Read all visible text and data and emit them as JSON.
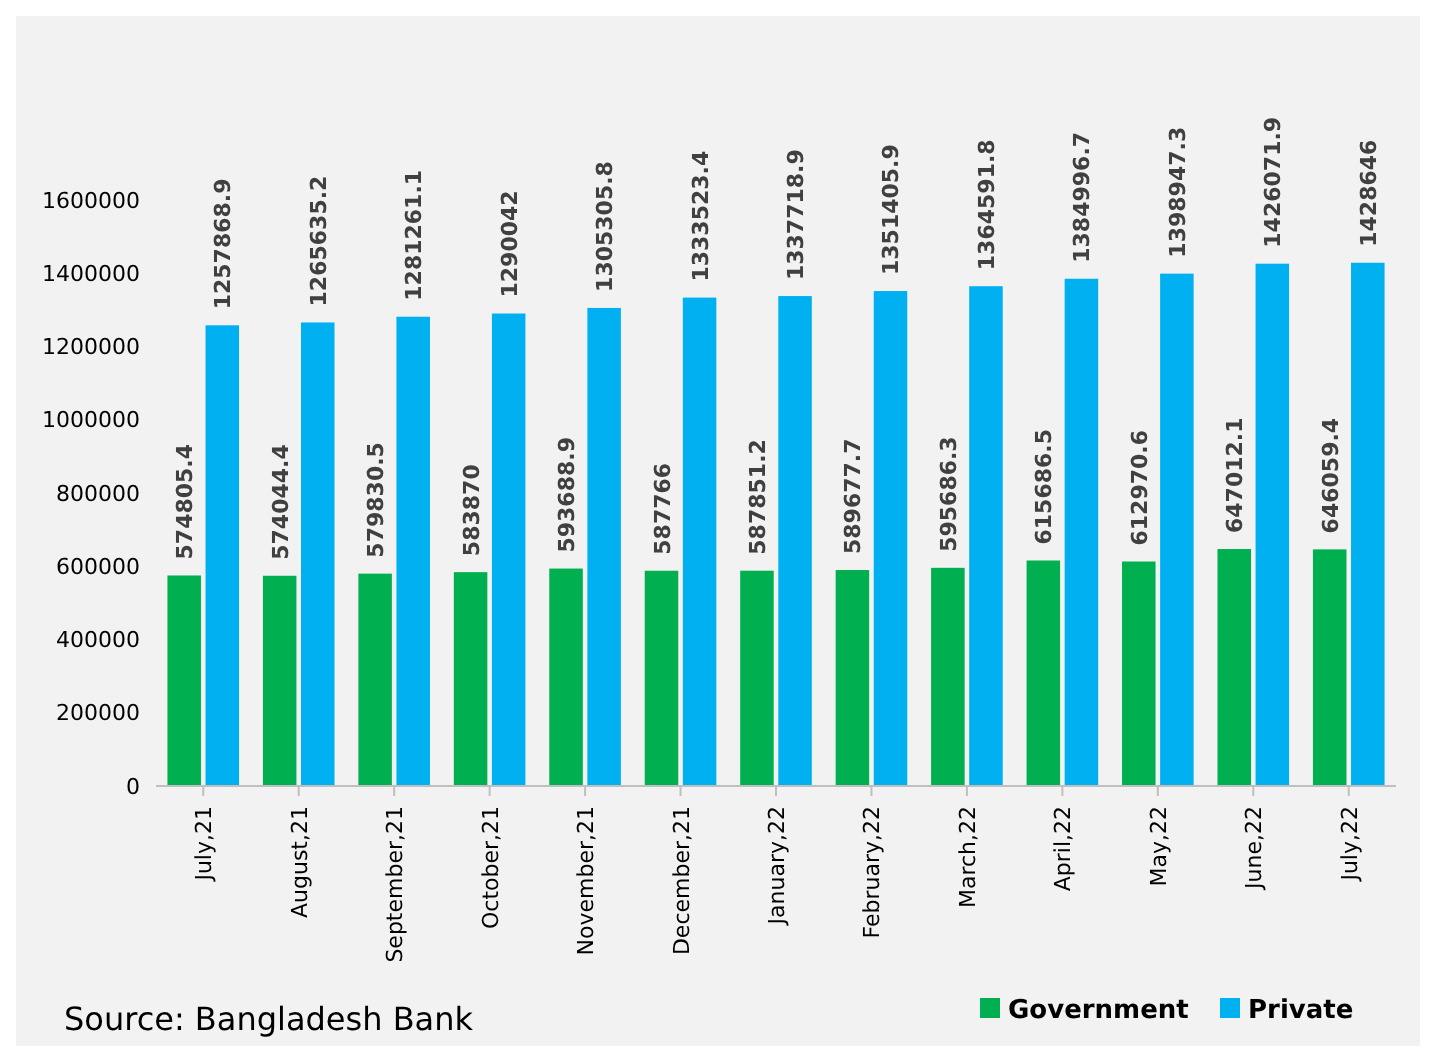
{
  "chart_data": {
    "type": "bar",
    "categories": [
      "July,21",
      "August,21",
      "September,21",
      "October,21",
      "November,21",
      "December,21",
      "January,22",
      "February,22",
      "March,22",
      "April,22",
      "May,22",
      "June,22",
      "July,22"
    ],
    "series": [
      {
        "name": "Government",
        "color": "#00b050",
        "values": [
          574805.4,
          574044.4,
          579830.5,
          583870,
          593688.9,
          587766,
          587851.2,
          589677.7,
          595686.3,
          615686.5,
          612970.6,
          647012.1,
          646059.4
        ]
      },
      {
        "name": "Private",
        "color": "#00b0f0",
        "values": [
          1257868.9,
          1265635.2,
          1281261.1,
          1290042,
          1305305.8,
          1333523.4,
          1337718.9,
          1351405.9,
          1364591.8,
          1384996.7,
          1398947.3,
          1426071.9,
          1428646
        ]
      }
    ],
    "ylim": [
      0,
      1600000
    ],
    "yticks": [
      0,
      200000,
      400000,
      600000,
      800000,
      1000000,
      1200000,
      1400000,
      1600000
    ],
    "data_labels": true,
    "grid": false,
    "legend": "bottom right",
    "annotations": [
      "Source: Bangladesh Bank"
    ]
  }
}
